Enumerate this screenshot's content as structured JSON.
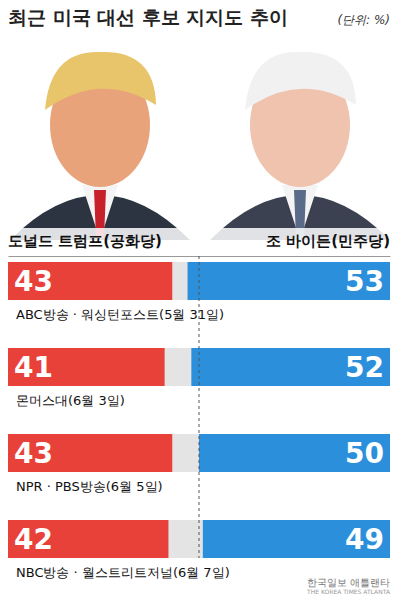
{
  "chart_data": {
    "type": "bar",
    "orientation": "horizontal",
    "title": "최근 미국 대선 후보 지지도 추이",
    "subtitle": "(단위: %)",
    "categories": [
      "ABC방송 · 워싱턴포스트(5월 31일)",
      "몬머스대(6월 3일)",
      "NPR · PBS방송(6월 5일)",
      "NBC방송 · 월스트리트저널(6월 7일)"
    ],
    "series": [
      {
        "name": "도널드 트럼프(공화당)",
        "color": "#e8413a",
        "values": [
          43,
          41,
          43,
          42
        ]
      },
      {
        "name": "조 바이든(민주당)",
        "color": "#2b8fdb",
        "values": [
          53,
          52,
          50,
          49
        ]
      }
    ],
    "xlim": [
      0,
      100
    ],
    "data_labels": true,
    "tick_labels": false,
    "grid": false,
    "annotations": [
      "한국일보 애틀랜타",
      "THE KOREA TIMES ATLANTA"
    ]
  }
}
